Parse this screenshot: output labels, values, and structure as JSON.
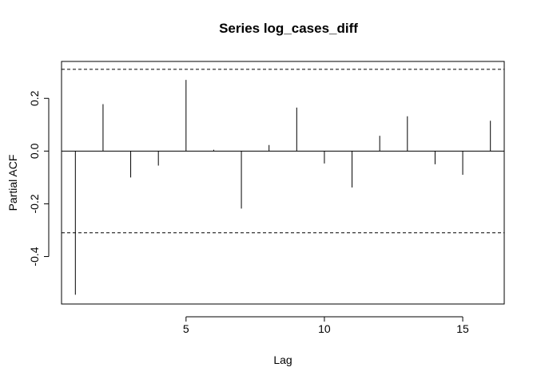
{
  "chart_data": {
    "type": "bar",
    "title": "Series  log_cases_diff",
    "xlabel": "Lag",
    "ylabel": "Partial ACF",
    "xlim": [
      0.5,
      16.5
    ],
    "ylim": [
      -0.58,
      0.34
    ],
    "x_ticks": [
      5,
      10,
      15
    ],
    "x_tick_labels": [
      "5",
      "10",
      "15"
    ],
    "y_ticks": [
      -0.4,
      -0.2,
      0.0,
      0.2
    ],
    "y_tick_labels": [
      "-0.4",
      "-0.2",
      "0.0",
      "0.2"
    ],
    "confidence_bound": 0.31,
    "grid": false,
    "lags": [
      1,
      2,
      3,
      4,
      5,
      6,
      7,
      8,
      9,
      10,
      11,
      12,
      13,
      14,
      15,
      16
    ],
    "values": [
      -0.545,
      0.178,
      -0.1,
      -0.055,
      0.27,
      0.005,
      -0.218,
      0.023,
      0.165,
      -0.047,
      -0.138,
      0.058,
      0.132,
      -0.05,
      -0.09,
      0.115
    ],
    "colors": {
      "bars": "#000000",
      "bounds": "#000000",
      "axes": "#000000"
    }
  }
}
